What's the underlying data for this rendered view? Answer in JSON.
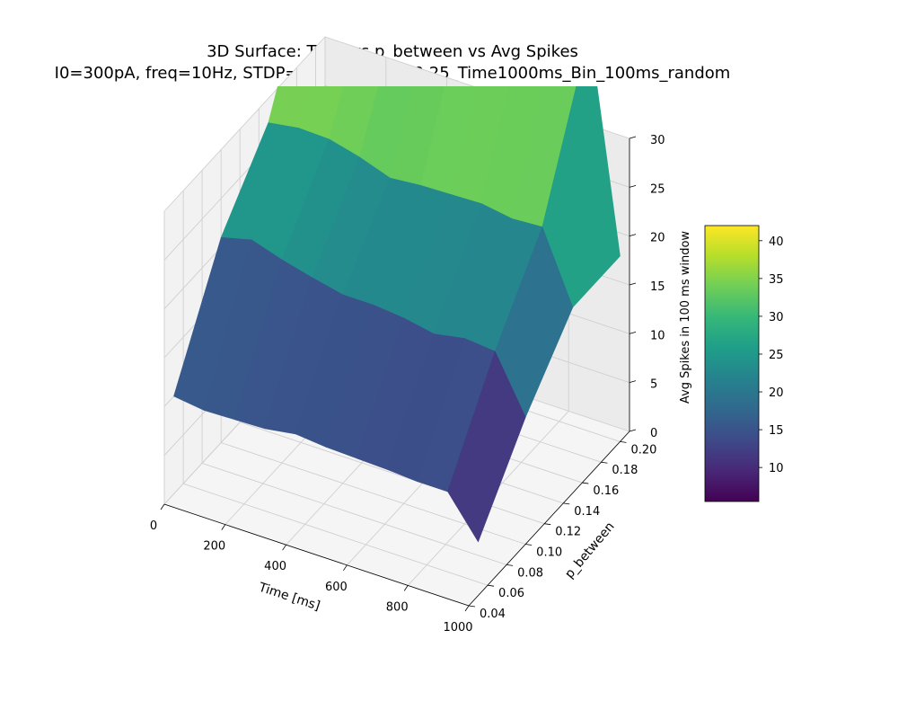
{
  "chart_data": {
    "type": "surface3d",
    "title": "3D Surface: Time vs p_between vs Avg Spikes",
    "subtitle": "I0=300pA, freq=10Hz, STDP=Off, p_within=0.25_Time1000ms_Bin_100ms_random",
    "xlabel": "Time [ms]",
    "ylabel": "p_between",
    "zlabel": "Avg Spikes in 100 ms window",
    "xlim": [
      0,
      1000
    ],
    "ylim": [
      0.04,
      0.21
    ],
    "zlim": [
      0,
      30
    ],
    "x_ticks": [
      "0",
      "200",
      "400",
      "600",
      "800",
      "1000"
    ],
    "y_ticks": [
      "0.04",
      "0.06",
      "0.08",
      "0.10",
      "0.12",
      "0.14",
      "0.16",
      "0.18",
      "0.20"
    ],
    "z_ticks": [
      "0",
      "5",
      "10",
      "15",
      "20",
      "25",
      "30"
    ],
    "colorbar": {
      "colormap": "viridis",
      "range": [
        5.5,
        42
      ],
      "ticks": [
        "10",
        "15",
        "20",
        "25",
        "30",
        "35",
        "40"
      ]
    },
    "time": [
      0,
      100,
      200,
      300,
      400,
      500,
      600,
      700,
      800,
      900,
      1000
    ],
    "p_between": [
      0.05,
      0.1,
      0.15,
      0.2
    ],
    "z": [
      [
        10.0,
        9.6,
        9.7,
        9.8,
        10.3,
        10.0,
        9.9,
        9.8,
        9.6,
        9.6,
        5.5
      ],
      [
        21.0,
        21.8,
        20.8,
        20.0,
        19.3,
        19.3,
        19.0,
        18.4,
        19.0,
        18.7,
        13.0
      ],
      [
        27.5,
        28.0,
        27.9,
        27.1,
        26.0,
        26.3,
        26.4,
        26.5,
        26.0,
        26.2,
        19.0
      ],
      [
        41.0,
        41.0,
        40.5,
        40.0,
        40.2,
        41.0,
        41.0,
        41.0,
        41.0,
        41.0,
        19.0
      ]
    ]
  }
}
